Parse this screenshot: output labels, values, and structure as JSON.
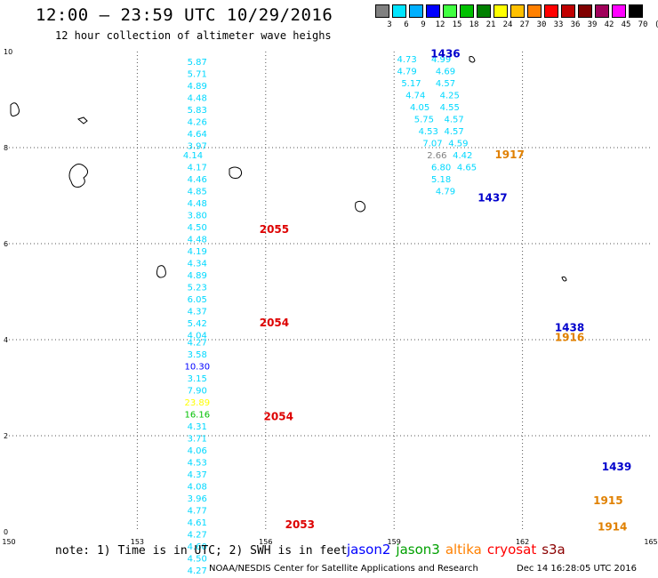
{
  "header": {
    "title": "12:00 — 23:59 UTC 10/29/2016",
    "subtitle": "12 hour collection of altimeter wave heighs"
  },
  "colorbar": {
    "labels": [
      "3",
      "6",
      "9",
      "12",
      "15",
      "18",
      "21",
      "24",
      "27",
      "30",
      "33",
      "36",
      "39",
      "42",
      "45",
      "70",
      "(ft)"
    ],
    "colors": [
      "#808080",
      "#00e5ff",
      "#00b0ff",
      "#0000ff",
      "#40ff40",
      "#00c000",
      "#008000",
      "#ffff00",
      "#ffc000",
      "#ff8000",
      "#ff0000",
      "#c00000",
      "#800000",
      "#a0005a",
      "#ff00ff",
      "#000000"
    ]
  },
  "map": {
    "lon_range": [
      150,
      165
    ],
    "lat_range": [
      0,
      10
    ],
    "x_ticks": [
      "150",
      "153",
      "156",
      "159",
      "162",
      "165"
    ],
    "y_ticks": [
      "0",
      "2",
      "4",
      "6",
      "8",
      "10"
    ],
    "grid": "dotted"
  },
  "tracks": [
    {
      "id": "left",
      "points": [
        {
          "lat": 9.8,
          "lon": 154.4,
          "v": "5.87"
        },
        {
          "lat": 9.55,
          "lon": 154.4,
          "v": "5.71"
        },
        {
          "lat": 9.3,
          "lon": 154.4,
          "v": "4.89"
        },
        {
          "lat": 9.05,
          "lon": 154.4,
          "v": "4.48"
        },
        {
          "lat": 8.8,
          "lon": 154.4,
          "v": "5.83"
        },
        {
          "lat": 8.55,
          "lon": 154.4,
          "v": "4.26"
        },
        {
          "lat": 8.3,
          "lon": 154.4,
          "v": "4.64"
        },
        {
          "lat": 8.05,
          "lon": 154.4,
          "v": "3.97"
        },
        {
          "lat": 7.85,
          "lon": 154.3,
          "v": "4.14"
        },
        {
          "lat": 7.6,
          "lon": 154.4,
          "v": "4.17"
        },
        {
          "lat": 7.35,
          "lon": 154.4,
          "v": "4.46"
        },
        {
          "lat": 7.1,
          "lon": 154.4,
          "v": "4.85"
        },
        {
          "lat": 6.85,
          "lon": 154.4,
          "v": "4.48"
        },
        {
          "lat": 6.6,
          "lon": 154.4,
          "v": "3.80"
        },
        {
          "lat": 6.35,
          "lon": 154.4,
          "v": "4.50"
        },
        {
          "lat": 6.1,
          "lon": 154.4,
          "v": "4.48"
        },
        {
          "lat": 5.85,
          "lon": 154.4,
          "v": "4.19"
        },
        {
          "lat": 5.6,
          "lon": 154.4,
          "v": "4.34"
        },
        {
          "lat": 5.35,
          "lon": 154.4,
          "v": "4.89"
        },
        {
          "lat": 5.1,
          "lon": 154.4,
          "v": "5.23"
        },
        {
          "lat": 4.85,
          "lon": 154.4,
          "v": "6.05"
        },
        {
          "lat": 4.6,
          "lon": 154.4,
          "v": "4.37"
        },
        {
          "lat": 4.35,
          "lon": 154.4,
          "v": "5.42"
        },
        {
          "lat": 4.1,
          "lon": 154.4,
          "v": "4.04"
        },
        {
          "lat": 3.95,
          "lon": 154.4,
          "v": "4.27"
        },
        {
          "lat": 3.7,
          "lon": 154.4,
          "v": "3.58"
        },
        {
          "lat": 3.45,
          "lon": 154.4,
          "v": "10.30",
          "c": "#0000ff"
        },
        {
          "lat": 3.2,
          "lon": 154.4,
          "v": "3.15"
        },
        {
          "lat": 2.95,
          "lon": 154.4,
          "v": "7.90"
        },
        {
          "lat": 2.7,
          "lon": 154.4,
          "v": "23.89",
          "c": "#ffff00"
        },
        {
          "lat": 2.45,
          "lon": 154.4,
          "v": "16.16",
          "c": "#00c000"
        },
        {
          "lat": 2.2,
          "lon": 154.4,
          "v": "4.31"
        },
        {
          "lat": 1.95,
          "lon": 154.4,
          "v": "3.71"
        },
        {
          "lat": 1.7,
          "lon": 154.4,
          "v": "4.06"
        },
        {
          "lat": 1.45,
          "lon": 154.4,
          "v": "4.53"
        },
        {
          "lat": 1.2,
          "lon": 154.4,
          "v": "4.37"
        },
        {
          "lat": 0.95,
          "lon": 154.4,
          "v": "4.08"
        },
        {
          "lat": 0.7,
          "lon": 154.4,
          "v": "3.96"
        },
        {
          "lat": 0.45,
          "lon": 154.4,
          "v": "4.77"
        },
        {
          "lat": 0.2,
          "lon": 154.4,
          "v": "4.61"
        },
        {
          "lat": -0.05,
          "lon": 154.4,
          "v": "4.27"
        },
        {
          "lat": -0.3,
          "lon": 154.4,
          "v": "4.60"
        },
        {
          "lat": -0.55,
          "lon": 154.4,
          "v": "4.50"
        },
        {
          "lat": -0.8,
          "lon": 154.4,
          "v": "4.27"
        }
      ]
    }
  ],
  "right_values": [
    {
      "lat": 9.85,
      "lon": 159.3,
      "v": "4.73"
    },
    {
      "lat": 9.6,
      "lon": 159.3,
      "v": "4.79"
    },
    {
      "lat": 9.35,
      "lon": 159.4,
      "v": "5.17"
    },
    {
      "lat": 9.1,
      "lon": 159.5,
      "v": "4.74"
    },
    {
      "lat": 8.85,
      "lon": 159.6,
      "v": "4.05"
    },
    {
      "lat": 8.6,
      "lon": 159.7,
      "v": "5.75"
    },
    {
      "lat": 8.35,
      "lon": 159.8,
      "v": "4.53"
    },
    {
      "lat": 8.1,
      "lon": 159.9,
      "v": "7.07"
    },
    {
      "lat": 7.85,
      "lon": 160.0,
      "v": "2.66",
      "c": "#808080"
    },
    {
      "lat": 7.6,
      "lon": 160.1,
      "v": "6.80"
    },
    {
      "lat": 7.35,
      "lon": 160.1,
      "v": "5.18"
    },
    {
      "lat": 7.1,
      "lon": 160.2,
      "v": "4.79"
    },
    {
      "lat": 9.85,
      "lon": 160.1,
      "v": "4.99"
    },
    {
      "lat": 9.6,
      "lon": 160.2,
      "v": "4.69"
    },
    {
      "lat": 9.35,
      "lon": 160.2,
      "v": "4.57"
    },
    {
      "lat": 9.1,
      "lon": 160.3,
      "v": "4.25"
    },
    {
      "lat": 8.85,
      "lon": 160.3,
      "v": "4.55"
    },
    {
      "lat": 8.6,
      "lon": 160.4,
      "v": "4.57"
    },
    {
      "lat": 8.35,
      "lon": 160.4,
      "v": "4.57"
    },
    {
      "lat": 8.1,
      "lon": 160.5,
      "v": "4.59"
    },
    {
      "lat": 7.85,
      "lon": 160.6,
      "v": "4.42"
    },
    {
      "lat": 7.6,
      "lon": 160.7,
      "v": "4.65"
    }
  ],
  "chart_data": {
    "type": "scatter",
    "title": "12:00 — 23:59 UTC 10/29/2016",
    "subtitle": "12 hour collection of altimeter wave heighs",
    "xlim": [
      150,
      165
    ],
    "ylim": [
      0,
      10
    ],
    "series": [
      {
        "name": "jason2",
        "points": []
      },
      {
        "name": "jason3",
        "points": []
      },
      {
        "name": "altika",
        "points": []
      },
      {
        "name": "cryosat",
        "points": []
      },
      {
        "name": "s3a",
        "points": []
      }
    ]
  },
  "pass_labels": [
    {
      "text": "1436",
      "lon": 160.2,
      "lat": 9.95,
      "c": "#0000cc"
    },
    {
      "text": "1917",
      "lon": 161.7,
      "lat": 7.85,
      "c": "#e08000"
    },
    {
      "text": "1437",
      "lon": 161.3,
      "lat": 6.95,
      "c": "#0000cc"
    },
    {
      "text": "2055",
      "lon": 156.2,
      "lat": 6.3,
      "c": "#dd0000"
    },
    {
      "text": "2054",
      "lon": 156.2,
      "lat": 4.35,
      "c": "#dd0000"
    },
    {
      "text": "1438",
      "lon": 163.1,
      "lat": 4.25,
      "c": "#0000cc"
    },
    {
      "text": "1916",
      "lon": 163.1,
      "lat": 4.05,
      "c": "#e08000"
    },
    {
      "text": "2054",
      "lon": 156.3,
      "lat": 2.4,
      "c": "#dd0000"
    },
    {
      "text": "1439",
      "lon": 164.2,
      "lat": 1.35,
      "c": "#0000cc"
    },
    {
      "text": "2053",
      "lon": 156.8,
      "lat": 0.15,
      "c": "#dd0000"
    },
    {
      "text": "1915",
      "lon": 164.0,
      "lat": 0.65,
      "c": "#e08000"
    },
    {
      "text": "1914",
      "lon": 164.1,
      "lat": 0.1,
      "c": "#e08000"
    }
  ],
  "footer": {
    "note": "note: 1) Time is in UTC; 2) SWH is in feet",
    "legend": [
      {
        "name": "jason2",
        "color": "#0000ff"
      },
      {
        "name": "jason3",
        "color": "#00a000"
      },
      {
        "name": "altika",
        "color": "#ff8000"
      },
      {
        "name": "cryosat",
        "color": "#ff0000"
      },
      {
        "name": "s3a",
        "color": "#8b0000"
      }
    ],
    "credit": "NOAA/NESDIS Center for Satellite Applications and Research",
    "stamp": "Dec 14 16:28:05 UTC 2016"
  }
}
